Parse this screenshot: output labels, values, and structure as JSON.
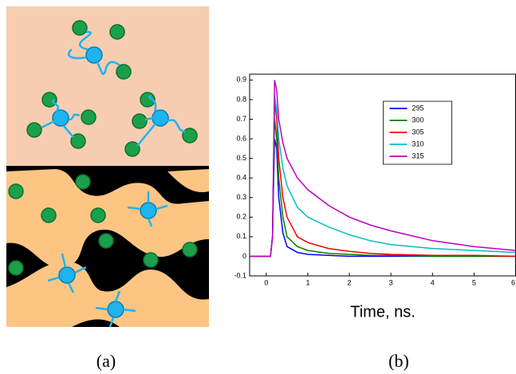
{
  "chart_data": {
    "type": "line",
    "xlabel": "Time, ns.",
    "x": [
      -0.4,
      0.1,
      0.15,
      0.2,
      0.25,
      0.3,
      0.4,
      0.5,
      0.75,
      1,
      1.5,
      2,
      2.5,
      3,
      4,
      5,
      6
    ],
    "series": [
      {
        "name": "295",
        "color": "#0000ff",
        "values": [
          0,
          0,
          0.1,
          0.6,
          0.55,
          0.3,
          0.12,
          0.05,
          0.02,
          0.01,
          0.005,
          0,
          0,
          0,
          0,
          0,
          0
        ]
      },
      {
        "name": "300",
        "color": "#008000",
        "values": [
          0,
          0,
          0.1,
          0.7,
          0.6,
          0.4,
          0.2,
          0.1,
          0.05,
          0.03,
          0.015,
          0.01,
          0.005,
          0.005,
          0,
          0,
          0
        ]
      },
      {
        "name": "305",
        "color": "#ff0000",
        "values": [
          0,
          0,
          0.1,
          0.8,
          0.7,
          0.5,
          0.3,
          0.2,
          0.1,
          0.07,
          0.04,
          0.025,
          0.015,
          0.01,
          0.005,
          0.005,
          0
        ]
      },
      {
        "name": "310",
        "color": "#00bfbf",
        "values": [
          0,
          0,
          0.1,
          0.82,
          0.75,
          0.6,
          0.45,
          0.36,
          0.25,
          0.2,
          0.15,
          0.11,
          0.08,
          0.06,
          0.04,
          0.03,
          0.02
        ]
      },
      {
        "name": "315",
        "color": "#bf00bf",
        "values": [
          0,
          0,
          0.1,
          0.9,
          0.85,
          0.7,
          0.58,
          0.5,
          0.4,
          0.34,
          0.26,
          0.2,
          0.16,
          0.13,
          0.08,
          0.05,
          0.03
        ]
      }
    ],
    "xlim": [
      -0.4,
      6
    ],
    "ylim": [
      -0.1,
      0.93
    ],
    "xticks": [
      0,
      1,
      2,
      3,
      4,
      5,
      6
    ],
    "yticks": [
      -0.1,
      0,
      0.1,
      0.2,
      0.3,
      0.4,
      0.5,
      0.6,
      0.7,
      0.8,
      0.9
    ],
    "legend": "upper right"
  },
  "captions": [
    "(a)",
    "(b)"
  ]
}
